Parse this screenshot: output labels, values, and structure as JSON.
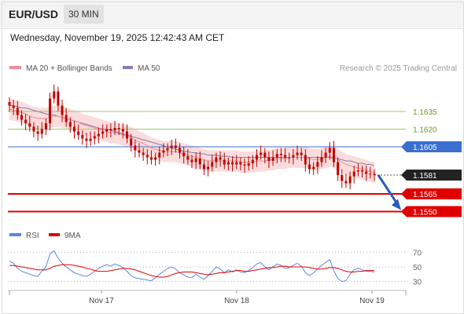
{
  "header": {
    "symbol": "EUR/USD",
    "timeframe": "30 MIN",
    "datetime": "Wednesday, November 19, 2025 12:42:43 AM CET"
  },
  "legend": {
    "ma20_label": "MA 20 + Bollinger Bands",
    "ma50_label": "MA 50",
    "rsi_label": "RSI",
    "ma9_label": "9MA",
    "attribution": "Research © 2025 Trading Central"
  },
  "colors": {
    "ma20": "#f08c8c",
    "bands_fill": "#fbdcdc",
    "ma50": "#7d7fb8",
    "candle": "#c00000",
    "support": "#e00000",
    "pivot": "#3a6fd0",
    "resistance": "#9dc96e",
    "current_label": "#222222",
    "rsi": "#5b86e0",
    "rsi_ma": "#e00000",
    "forecast_arrow": "#2a5cb8"
  },
  "chart_data": [
    {
      "type": "candlestick",
      "title": "EUR/USD",
      "timeframe": "30 MIN",
      "x_ticks": [
        "Nov 17",
        "Nov 18",
        "Nov 19"
      ],
      "price_levels": [
        {
          "label": "1.1635",
          "value": 1.1635,
          "kind": "resistance"
        },
        {
          "label": "1.1620",
          "value": 1.162,
          "kind": "resistance"
        },
        {
          "label": "1.1605",
          "value": 1.1605,
          "kind": "pivot"
        },
        {
          "label": "1.1581",
          "value": 1.1581,
          "kind": "current"
        },
        {
          "label": "1.1565",
          "value": 1.1565,
          "kind": "support"
        },
        {
          "label": "1.1550",
          "value": 1.155,
          "kind": "support"
        }
      ],
      "series": [
        {
          "name": "Price",
          "close": [
            1.164,
            1.1638,
            1.1632,
            1.1628,
            1.1625,
            1.1622,
            1.1618,
            1.1616,
            1.162,
            1.1625,
            1.1646,
            1.1652,
            1.164,
            1.1632,
            1.1626,
            1.1622,
            1.1618,
            1.1615,
            1.1612,
            1.161,
            1.1612,
            1.1614,
            1.1616,
            1.1618,
            1.162,
            1.1619,
            1.1621,
            1.162,
            1.1618,
            1.1612,
            1.1606,
            1.1602,
            1.16,
            1.1598,
            1.1596,
            1.1594,
            1.1596,
            1.16,
            1.1602,
            1.1604,
            1.1606,
            1.1604,
            1.16,
            1.1597,
            1.1594,
            1.1592,
            1.1595,
            1.159,
            1.1586,
            1.1588,
            1.1592,
            1.1596,
            1.1594,
            1.159,
            1.1592,
            1.159,
            1.1592,
            1.159,
            1.1589,
            1.1591,
            1.1594,
            1.1598,
            1.16,
            1.1596,
            1.1593,
            1.1596,
            1.1599,
            1.1598,
            1.1596,
            1.1596,
            1.1598,
            1.16,
            1.1598,
            1.159,
            1.1586,
            1.1588,
            1.1592,
            1.1596,
            1.16,
            1.1604,
            1.1592,
            1.1581,
            1.1576,
            1.1574,
            1.158,
            1.1584,
            1.1585,
            1.1584,
            1.1582,
            1.1582,
            1.1581
          ],
          "high": 1.1654,
          "low": 1.1573
        },
        {
          "name": "MA 20",
          "values": [
            1.1637,
            1.1636,
            1.1635,
            1.1634,
            1.1633,
            1.1631,
            1.163,
            1.1629,
            1.1629,
            1.1629,
            1.163,
            1.1631,
            1.1631,
            1.163,
            1.1629,
            1.1628,
            1.1627,
            1.1626,
            1.1624,
            1.1623,
            1.1622,
            1.1621,
            1.162,
            1.1619,
            1.1618,
            1.1617,
            1.1617,
            1.1616,
            1.1615,
            1.1614,
            1.1613,
            1.1611,
            1.1609,
            1.1608,
            1.1606,
            1.1604,
            1.1603,
            1.1602,
            1.1601,
            1.1601,
            1.1601,
            1.1601,
            1.16,
            1.1599,
            1.1598,
            1.1597,
            1.1596,
            1.1595,
            1.1594,
            1.1593,
            1.1593,
            1.1593,
            1.1593,
            1.1593,
            1.1593,
            1.1593,
            1.1593,
            1.1592,
            1.1592,
            1.1592,
            1.1592,
            1.1593,
            1.1593,
            1.1593,
            1.1594,
            1.1594,
            1.1595,
            1.1595,
            1.1595,
            1.1596,
            1.1596,
            1.1596,
            1.1596,
            1.1596,
            1.1595,
            1.1594,
            1.1594,
            1.1595,
            1.1596,
            1.1597,
            1.1596,
            1.1594,
            1.1592,
            1.159,
            1.1589,
            1.1588,
            1.1587,
            1.1586,
            1.1585,
            1.1584,
            1.1583
          ]
        },
        {
          "name": "MA 50",
          "values": [
            1.164,
            1.164,
            1.1639,
            1.1638,
            1.1638,
            1.1637,
            1.1636,
            1.1635,
            1.1634,
            1.1633,
            1.1632,
            1.1632,
            1.1631,
            1.163,
            1.1629,
            1.1628,
            1.1627,
            1.1626,
            1.1625,
            1.1624,
            1.1623,
            1.1622,
            1.1621,
            1.162,
            1.162,
            1.1619,
            1.1618,
            1.1617,
            1.1616,
            1.1615,
            1.1614,
            1.1613,
            1.1612,
            1.1611,
            1.161,
            1.1609,
            1.1608,
            1.1607,
            1.1606,
            1.1605,
            1.1604,
            1.1603,
            1.1602,
            1.1601,
            1.1601,
            1.16,
            1.16,
            1.1599,
            1.1599,
            1.1598,
            1.1598,
            1.1598,
            1.1597,
            1.1597,
            1.1597,
            1.1596,
            1.1596,
            1.1596,
            1.1596,
            1.1596,
            1.1596,
            1.1596,
            1.1596,
            1.1596,
            1.1596,
            1.1596,
            1.1596,
            1.1596,
            1.1596,
            1.1596,
            1.1596,
            1.1596,
            1.1596,
            1.1596,
            1.1596,
            1.1596,
            1.1596,
            1.1596,
            1.1596,
            1.1596,
            1.1595,
            1.1595,
            1.1594,
            1.1593,
            1.1593,
            1.1592,
            1.1591,
            1.1591,
            1.159,
            1.159,
            1.1589
          ]
        }
      ],
      "bollinger_width": 0.0009,
      "ylim": [
        1.1543,
        1.1663
      ]
    },
    {
      "type": "line",
      "title": "RSI",
      "y_ticks": [
        70,
        50,
        30
      ],
      "ylim": [
        22,
        78
      ],
      "series": [
        {
          "name": "RSI",
          "values": [
            58,
            55,
            48,
            44,
            42,
            40,
            38,
            37,
            44,
            50,
            68,
            72,
            62,
            55,
            50,
            46,
            42,
            40,
            38,
            37,
            40,
            44,
            48,
            51,
            53,
            51,
            54,
            52,
            49,
            44,
            38,
            35,
            34,
            33,
            32,
            31,
            35,
            40,
            44,
            48,
            50,
            47,
            42,
            39,
            36,
            35,
            40,
            36,
            33,
            38,
            44,
            50,
            47,
            42,
            46,
            43,
            46,
            43,
            42,
            45,
            49,
            54,
            56,
            50,
            46,
            50,
            54,
            52,
            48,
            49,
            52,
            55,
            51,
            42,
            38,
            42,
            47,
            52,
            56,
            60,
            45,
            34,
            30,
            31,
            40,
            46,
            48,
            46,
            44,
            44,
            43
          ]
        },
        {
          "name": "9MA",
          "values": [
            52,
            52,
            51,
            50,
            49,
            48,
            47,
            46,
            46,
            46,
            48,
            51,
            52,
            53,
            53,
            53,
            52,
            51,
            50,
            48,
            47,
            45,
            44,
            44,
            44,
            45,
            46,
            47,
            48,
            48,
            47,
            46,
            44,
            42,
            40,
            38,
            37,
            36,
            36,
            37,
            39,
            41,
            42,
            43,
            43,
            43,
            42,
            41,
            40,
            39,
            40,
            41,
            42,
            42,
            43,
            44,
            45,
            45,
            44,
            44,
            45,
            46,
            47,
            48,
            49,
            49,
            50,
            51,
            51,
            50,
            50,
            50,
            50,
            50,
            49,
            48,
            47,
            47,
            48,
            49,
            49,
            48,
            46,
            44,
            43,
            43,
            44,
            44,
            45,
            45,
            45
          ]
        }
      ]
    }
  ]
}
